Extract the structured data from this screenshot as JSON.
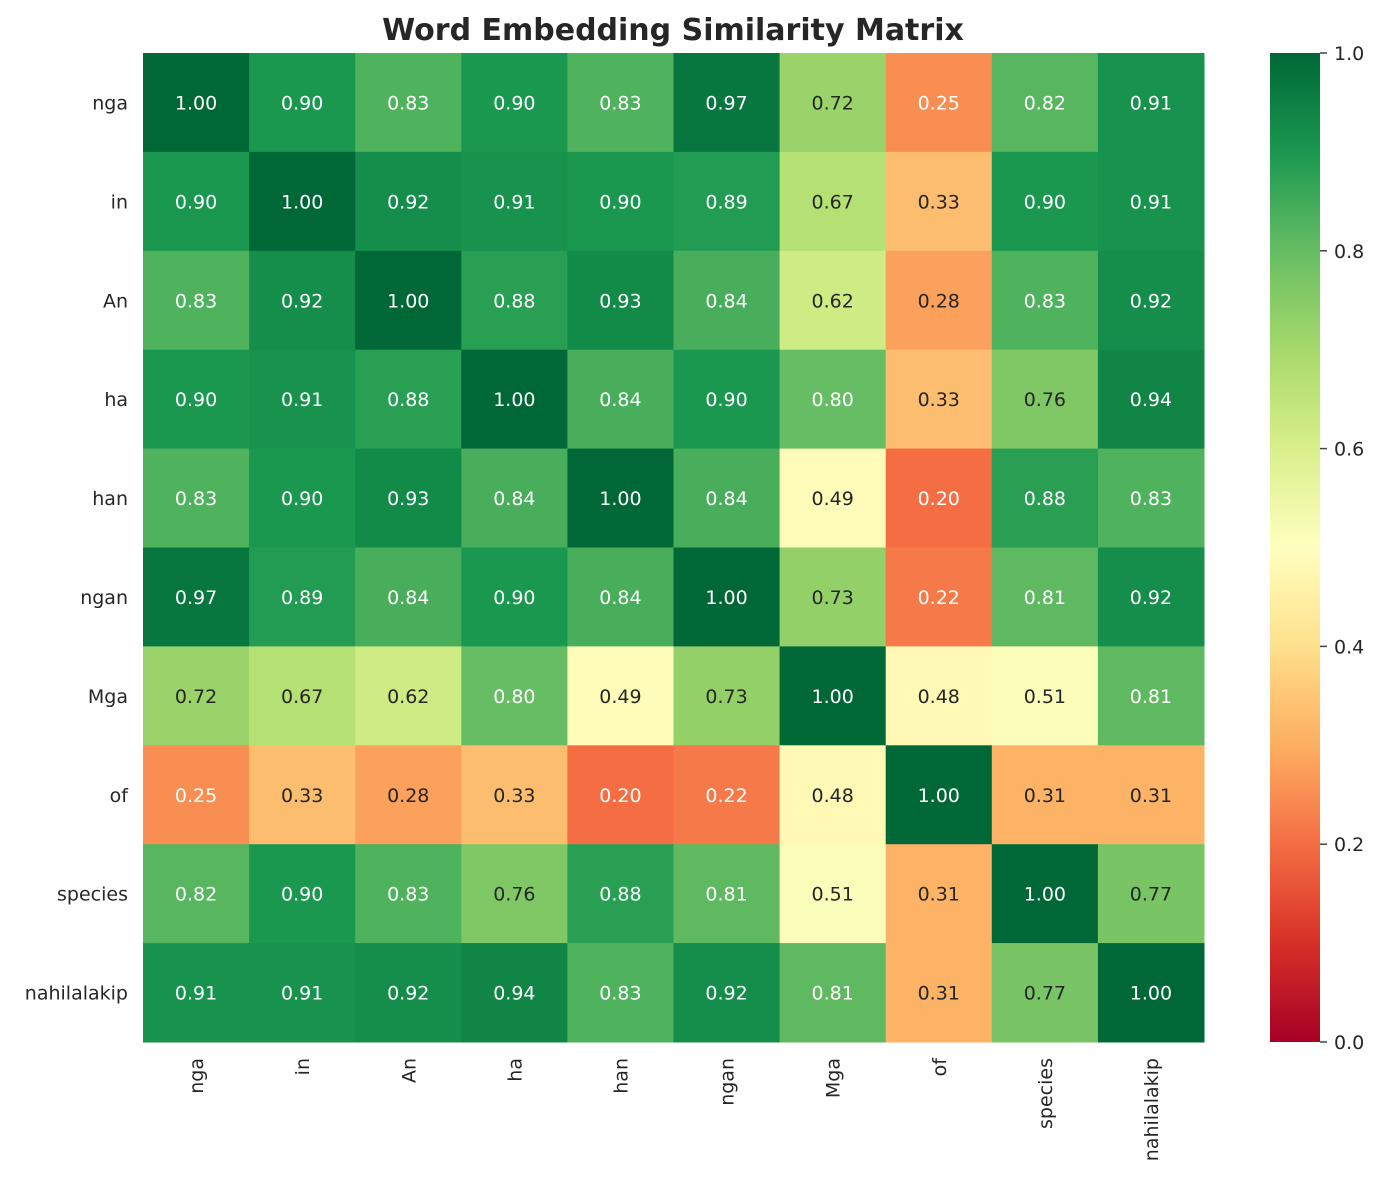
{
  "chart_data": {
    "type": "heatmap",
    "title": "Word Embedding Similarity Matrix",
    "colormap": "RdYlGn",
    "vmin": 0.0,
    "vmax": 1.0,
    "colorbar_ticks": [
      "0.0",
      "0.2",
      "0.4",
      "0.6",
      "0.8",
      "1.0"
    ],
    "row_labels": [
      "nga",
      "in",
      "An",
      "ha",
      "han",
      "ngan",
      "Mga",
      "of",
      "species",
      "nahilalakip"
    ],
    "col_labels": [
      "nga",
      "in",
      "An",
      "ha",
      "han",
      "ngan",
      "Mga",
      "of",
      "species",
      "nahilalakip"
    ],
    "values": [
      [
        1.0,
        0.9,
        0.83,
        0.9,
        0.83,
        0.97,
        0.72,
        0.25,
        0.82,
        0.91
      ],
      [
        0.9,
        1.0,
        0.92,
        0.91,
        0.9,
        0.89,
        0.67,
        0.33,
        0.9,
        0.91
      ],
      [
        0.83,
        0.92,
        1.0,
        0.88,
        0.93,
        0.84,
        0.62,
        0.28,
        0.83,
        0.92
      ],
      [
        0.9,
        0.91,
        0.88,
        1.0,
        0.84,
        0.9,
        0.8,
        0.33,
        0.76,
        0.94
      ],
      [
        0.83,
        0.9,
        0.93,
        0.84,
        1.0,
        0.84,
        0.49,
        0.2,
        0.88,
        0.83
      ],
      [
        0.97,
        0.89,
        0.84,
        0.9,
        0.84,
        1.0,
        0.73,
        0.22,
        0.81,
        0.92
      ],
      [
        0.72,
        0.67,
        0.62,
        0.8,
        0.49,
        0.73,
        1.0,
        0.48,
        0.51,
        0.81
      ],
      [
        0.25,
        0.33,
        0.28,
        0.33,
        0.2,
        0.22,
        0.48,
        1.0,
        0.31,
        0.31
      ],
      [
        0.82,
        0.9,
        0.83,
        0.76,
        0.88,
        0.81,
        0.51,
        0.31,
        1.0,
        0.77
      ],
      [
        0.91,
        0.91,
        0.92,
        0.94,
        0.83,
        0.92,
        0.81,
        0.31,
        0.77,
        1.0
      ]
    ]
  }
}
